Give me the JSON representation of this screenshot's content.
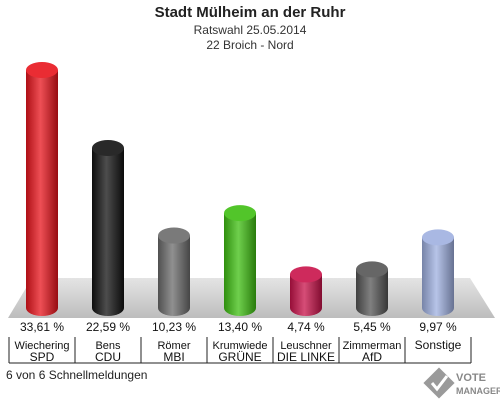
{
  "header": {
    "title": "Stadt Mülheim an der Ruhr",
    "subtitle": "Ratswahl 25.05.2014",
    "district": "22 Broich - Nord"
  },
  "footer": {
    "note": "6 von 6 Schnellmeldungen",
    "logo_line1": "VOTE",
    "logo_line2": "MANAGER"
  },
  "chart_data": {
    "type": "bar",
    "title": "Stadt Mülheim an der Ruhr",
    "subtitle": "Ratswahl 25.05.2014 — 22 Broich - Nord",
    "categories": [
      "SPD",
      "CDU",
      "MBI",
      "GRÜNE",
      "DIE LINKE",
      "AfD",
      "Sonstige"
    ],
    "candidates": [
      "Wiechering",
      "Bens",
      "Römer",
      "Krumwiede",
      "Leuschner",
      "Zimmerman",
      ""
    ],
    "values": [
      33.61,
      22.59,
      10.23,
      13.4,
      4.74,
      5.45,
      9.97
    ],
    "value_labels": [
      "33,61 %",
      "22,59 %",
      "10,23 %",
      "13,40 %",
      "4,74 %",
      "5,45 %",
      "9,97 %"
    ],
    "colors": [
      "#e8141c",
      "#111111",
      "#6b6b6b",
      "#3fbf12",
      "#c8124a",
      "#555555",
      "#9fb0e0"
    ],
    "ylim": [
      0,
      35
    ],
    "grid": false
  }
}
